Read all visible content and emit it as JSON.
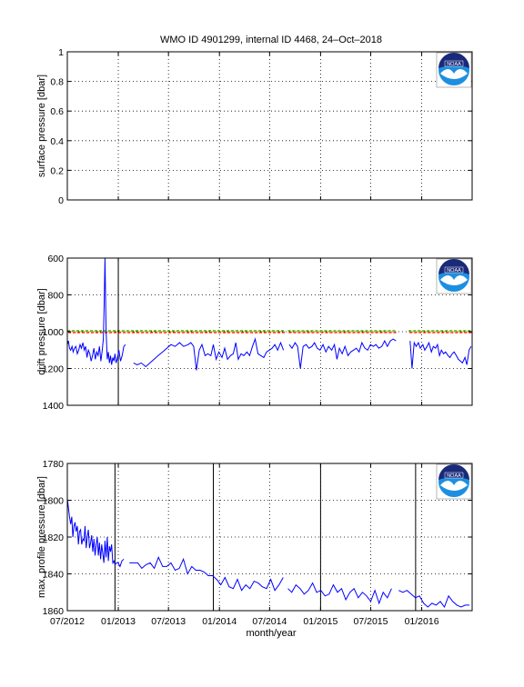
{
  "figure": {
    "title": "WMO ID 4901299, internal ID 4468, 24–Oct–2018",
    "xlabel": "month/year",
    "x_ticks": [
      "07/2012",
      "01/2013",
      "07/2013",
      "01/2014",
      "07/2014",
      "01/2015",
      "07/2015",
      "01/2016"
    ],
    "logo_text": "NOAA",
    "colors": {
      "line": "#0000ff",
      "ref_red": "#ff0000",
      "ref_green": "#00a000",
      "ref_yellow": "#e0c000",
      "event": "#000000"
    }
  },
  "chart_data": [
    {
      "type": "line",
      "id": "surface",
      "ylabel": "surface pressure [dbar]",
      "ylim": [
        0,
        1
      ],
      "y_reversed": false,
      "y_ticks": [
        "0",
        "0.2",
        "0.4",
        "0.6",
        "0.8",
        "1"
      ],
      "xlim": [
        "2012-07-01",
        "2016-07-01"
      ],
      "grid": true,
      "series": [
        {
          "x": [],
          "y": []
        }
      ],
      "event_lines": []
    },
    {
      "type": "line",
      "id": "drift",
      "ylabel": "drift pressure [dbar]",
      "ylim": [
        600,
        1400
      ],
      "y_reversed": true,
      "y_ticks": [
        "600",
        "800",
        "1000",
        "1200",
        "1400"
      ],
      "xlim": [
        "2012-07-01",
        "2016-07-01"
      ],
      "grid": true,
      "reference_level": 1000,
      "event_lines": [
        "2013-01-01"
      ],
      "series": [
        {
          "segments": [
            {
              "x": [
                "2012-07-01",
                "2012-07-05",
                "2012-07-09",
                "2012-07-13",
                "2012-07-18",
                "2012-07-22",
                "2012-07-27",
                "2012-08-01",
                "2012-08-06",
                "2012-08-11",
                "2012-08-16",
                "2012-08-21",
                "2012-08-26",
                "2012-08-31",
                "2012-09-05",
                "2012-09-10",
                "2012-09-15",
                "2012-09-20",
                "2012-09-25",
                "2012-09-30",
                "2012-10-05",
                "2012-10-10",
                "2012-10-15",
                "2012-10-20",
                "2012-10-25",
                "2012-10-30",
                "2012-11-04",
                "2012-11-08",
                "2012-11-11",
                "2012-11-14",
                "2012-11-18",
                "2012-11-22",
                "2012-11-26",
                "2012-11-30",
                "2012-12-04",
                "2012-12-08",
                "2012-12-12",
                "2012-12-16",
                "2012-12-20",
                "2012-12-24",
                "2012-12-28",
                "2013-01-03",
                "2013-01-09",
                "2013-01-15",
                "2013-01-21",
                "2013-01-27"
              ],
              "y": [
                1070,
                1050,
                1090,
                1100,
                1080,
                1110,
                1090,
                1080,
                1120,
                1100,
                1070,
                1090,
                1060,
                1100,
                1080,
                1140,
                1100,
                1120,
                1160,
                1130,
                1090,
                1150,
                1110,
                1130,
                1080,
                1160,
                1100,
                1040,
                850,
                600,
                990,
                1150,
                1110,
                1170,
                1130,
                1180,
                1140,
                1160,
                1120,
                1170,
                1150,
                1100,
                1160,
                1130,
                1080,
                1070
              ]
            },
            {
              "x": [
                "2013-02-25",
                "2013-03-10",
                "2013-03-25",
                "2013-04-10",
                "2013-04-25",
                "2013-05-10",
                "2013-05-25",
                "2013-06-10",
                "2013-06-25",
                "2013-07-10",
                "2013-07-25",
                "2013-08-10",
                "2013-08-25",
                "2013-09-10",
                "2013-09-20",
                "2013-09-30",
                "2013-10-10",
                "2013-10-20",
                "2013-10-30",
                "2013-11-10",
                "2013-11-20",
                "2013-12-01",
                "2013-12-10",
                "2013-12-20",
                "2013-12-30",
                "2014-01-10",
                "2014-01-20",
                "2014-01-30",
                "2014-02-10",
                "2014-02-20",
                "2014-03-01",
                "2014-03-10",
                "2014-03-20",
                "2014-03-30",
                "2014-04-10",
                "2014-04-20",
                "2014-04-30",
                "2014-05-10",
                "2014-05-20",
                "2014-05-30",
                "2014-06-10",
                "2014-06-20",
                "2014-06-30",
                "2014-07-10",
                "2014-07-20",
                "2014-07-30",
                "2014-08-10",
                "2014-08-20"
              ],
              "y": [
                1170,
                1180,
                1170,
                1190,
                1170,
                1150,
                1130,
                1110,
                1090,
                1070,
                1080,
                1060,
                1080,
                1070,
                1060,
                1080,
                1210,
                1100,
                1070,
                1130,
                1120,
                1130,
                1070,
                1150,
                1110,
                1140,
                1090,
                1150,
                1130,
                1120,
                1060,
                1150,
                1120,
                1130,
                1110,
                1130,
                1080,
                1040,
                1120,
                1130,
                1140,
                1110,
                1100,
                1090,
                1070,
                1100,
                1060,
                1100
              ]
            },
            {
              "x": [
                "2014-09-10",
                "2014-09-20",
                "2014-10-01",
                "2014-10-10",
                "2014-10-20",
                "2014-10-30",
                "2014-11-10",
                "2014-11-20",
                "2014-12-01",
                "2014-12-10",
                "2014-12-20",
                "2014-12-30",
                "2015-01-10",
                "2015-01-20",
                "2015-01-30",
                "2015-02-10",
                "2015-02-20",
                "2015-03-01",
                "2015-03-10",
                "2015-03-20",
                "2015-03-30",
                "2015-04-10",
                "2015-04-20",
                "2015-04-30",
                "2015-05-10",
                "2015-05-20",
                "2015-05-30",
                "2015-06-10",
                "2015-06-20",
                "2015-06-30",
                "2015-07-10",
                "2015-07-20",
                "2015-07-30",
                "2015-08-10",
                "2015-08-20",
                "2015-08-30",
                "2015-09-10",
                "2015-09-20",
                "2015-09-30"
              ],
              "y": [
                1070,
                1090,
                1060,
                1080,
                1200,
                1080,
                1070,
                1090,
                1080,
                1060,
                1090,
                1100,
                1070,
                1110,
                1080,
                1100,
                1070,
                1150,
                1090,
                1120,
                1080,
                1130,
                1110,
                1100,
                1090,
                1110,
                1060,
                1090,
                1100,
                1070,
                1080,
                1070,
                1090,
                1080,
                1050,
                1080,
                1050,
                1040,
                1050
              ]
            },
            {
              "x": [
                "2015-11-20",
                "2015-11-27",
                "2015-12-05",
                "2015-12-12",
                "2015-12-20",
                "2015-12-27",
                "2016-01-05",
                "2016-01-12",
                "2016-01-20",
                "2016-01-27",
                "2016-02-05",
                "2016-02-12",
                "2016-02-20",
                "2016-02-27",
                "2016-03-05",
                "2016-03-12",
                "2016-03-20",
                "2016-03-27",
                "2016-04-05",
                "2016-04-12",
                "2016-04-20",
                "2016-04-27",
                "2016-05-05",
                "2016-05-12",
                "2016-05-20",
                "2016-05-27",
                "2016-06-05",
                "2016-06-12",
                "2016-06-20",
                "2016-06-27"
              ],
              "y": [
                1050,
                1200,
                1060,
                1080,
                1060,
                1090,
                1070,
                1100,
                1080,
                1060,
                1110,
                1080,
                1090,
                1070,
                1130,
                1100,
                1120,
                1110,
                1130,
                1140,
                1120,
                1110,
                1130,
                1150,
                1160,
                1170,
                1140,
                1180,
                1100,
                1080
              ]
            }
          ]
        }
      ]
    },
    {
      "type": "line",
      "id": "max_profile",
      "ylabel": "max. profile pressure [dbar]",
      "ylim": [
        1780,
        1860
      ],
      "y_reversed": true,
      "y_ticks": [
        "1780",
        "1800",
        "1820",
        "1840",
        "1860"
      ],
      "xlim": [
        "2012-07-01",
        "2016-07-01"
      ],
      "grid": true,
      "event_lines": [
        "2012-12-20",
        "2013-12-10",
        "2015-01-01",
        "2015-12-10"
      ],
      "series": [
        {
          "segments": [
            {
              "x": [
                "2012-07-01",
                "2012-07-05",
                "2012-07-09",
                "2012-07-13",
                "2012-07-17",
                "2012-07-21",
                "2012-07-25",
                "2012-07-29",
                "2012-08-02",
                "2012-08-06",
                "2012-08-10",
                "2012-08-14",
                "2012-08-18",
                "2012-08-22",
                "2012-08-26",
                "2012-08-30",
                "2012-09-03",
                "2012-09-07",
                "2012-09-11",
                "2012-09-15",
                "2012-09-19",
                "2012-09-23",
                "2012-09-27",
                "2012-10-01",
                "2012-10-05",
                "2012-10-09",
                "2012-10-13",
                "2012-10-17",
                "2012-10-21",
                "2012-10-25",
                "2012-10-29",
                "2012-11-02",
                "2012-11-06",
                "2012-11-10",
                "2012-11-14",
                "2012-11-18",
                "2012-11-22",
                "2012-11-26",
                "2012-11-30",
                "2012-12-04",
                "2012-12-08",
                "2012-12-12",
                "2012-12-16",
                "2012-12-20",
                "2012-12-26",
                "2013-01-01",
                "2013-01-07",
                "2013-01-14",
                "2013-01-21"
              ],
              "y": [
                1799,
                1804,
                1809,
                1813,
                1809,
                1820,
                1814,
                1812,
                1817,
                1814,
                1824,
                1817,
                1816,
                1824,
                1821,
                1822,
                1814,
                1826,
                1820,
                1816,
                1826,
                1823,
                1819,
                1828,
                1821,
                1830,
                1824,
                1820,
                1830,
                1823,
                1832,
                1824,
                1829,
                1834,
                1822,
                1831,
                1820,
                1833,
                1825,
                1828,
                1824,
                1834,
                1833,
                1835,
                1834,
                1834,
                1836,
                1833,
                1832
              ]
            },
            {
              "x": [
                "2013-02-10",
                "2013-02-25",
                "2013-03-12",
                "2013-03-27",
                "2013-04-11",
                "2013-04-26",
                "2013-05-11",
                "2013-05-26",
                "2013-06-10",
                "2013-06-25",
                "2013-07-10",
                "2013-07-25",
                "2013-08-09",
                "2013-08-24",
                "2013-09-08",
                "2013-09-23",
                "2013-10-08",
                "2013-10-23",
                "2013-11-07",
                "2013-11-22",
                "2013-12-07",
                "2013-12-22",
                "2014-01-06",
                "2014-01-21",
                "2014-02-05",
                "2014-02-20",
                "2014-03-07",
                "2014-03-22",
                "2014-04-06",
                "2014-04-21",
                "2014-05-06",
                "2014-05-21",
                "2014-06-05",
                "2014-06-20",
                "2014-07-05",
                "2014-07-20",
                "2014-08-04",
                "2014-08-19"
              ],
              "y": [
                1834,
                1834,
                1834,
                1837,
                1835,
                1834,
                1837,
                1831,
                1836,
                1836,
                1834,
                1838,
                1837,
                1832,
                1840,
                1836,
                1838,
                1838,
                1839,
                1841,
                1841,
                1843,
                1846,
                1842,
                1847,
                1848,
                1843,
                1849,
                1846,
                1848,
                1844,
                1845,
                1847,
                1848,
                1843,
                1849,
                1846,
                1842
              ]
            },
            {
              "x": [
                "2014-09-05",
                "2014-09-19",
                "2014-10-04",
                "2014-10-19",
                "2014-11-03",
                "2014-11-18",
                "2014-12-03",
                "2014-12-18",
                "2015-01-02",
                "2015-01-17",
                "2015-02-01",
                "2015-02-16",
                "2015-03-03",
                "2015-03-18",
                "2015-04-02",
                "2015-04-17",
                "2015-05-02",
                "2015-05-17",
                "2015-06-01",
                "2015-06-16",
                "2015-07-01",
                "2015-07-16",
                "2015-07-31",
                "2015-08-15",
                "2015-08-30",
                "2015-09-14"
              ],
              "y": [
                1848,
                1850,
                1846,
                1848,
                1851,
                1849,
                1845,
                1850,
                1849,
                1852,
                1851,
                1846,
                1850,
                1848,
                1854,
                1850,
                1848,
                1853,
                1850,
                1852,
                1855,
                1849,
                1856,
                1850,
                1853,
                1848
              ]
            },
            {
              "x": [
                "2015-10-10",
                "2015-10-25",
                "2015-11-09",
                "2015-11-24",
                "2015-12-09",
                "2015-12-24",
                "2016-01-08",
                "2016-01-23",
                "2016-02-07",
                "2016-02-22",
                "2016-03-08",
                "2016-03-23",
                "2016-04-07",
                "2016-04-22",
                "2016-05-07",
                "2016-05-22",
                "2016-06-06",
                "2016-06-21"
              ],
              "y": [
                1849,
                1850,
                1849,
                1851,
                1853,
                1852,
                1856,
                1858,
                1856,
                1857,
                1855,
                1858,
                1852,
                1855,
                1857,
                1858,
                1857,
                1857
              ]
            }
          ]
        }
      ]
    }
  ]
}
